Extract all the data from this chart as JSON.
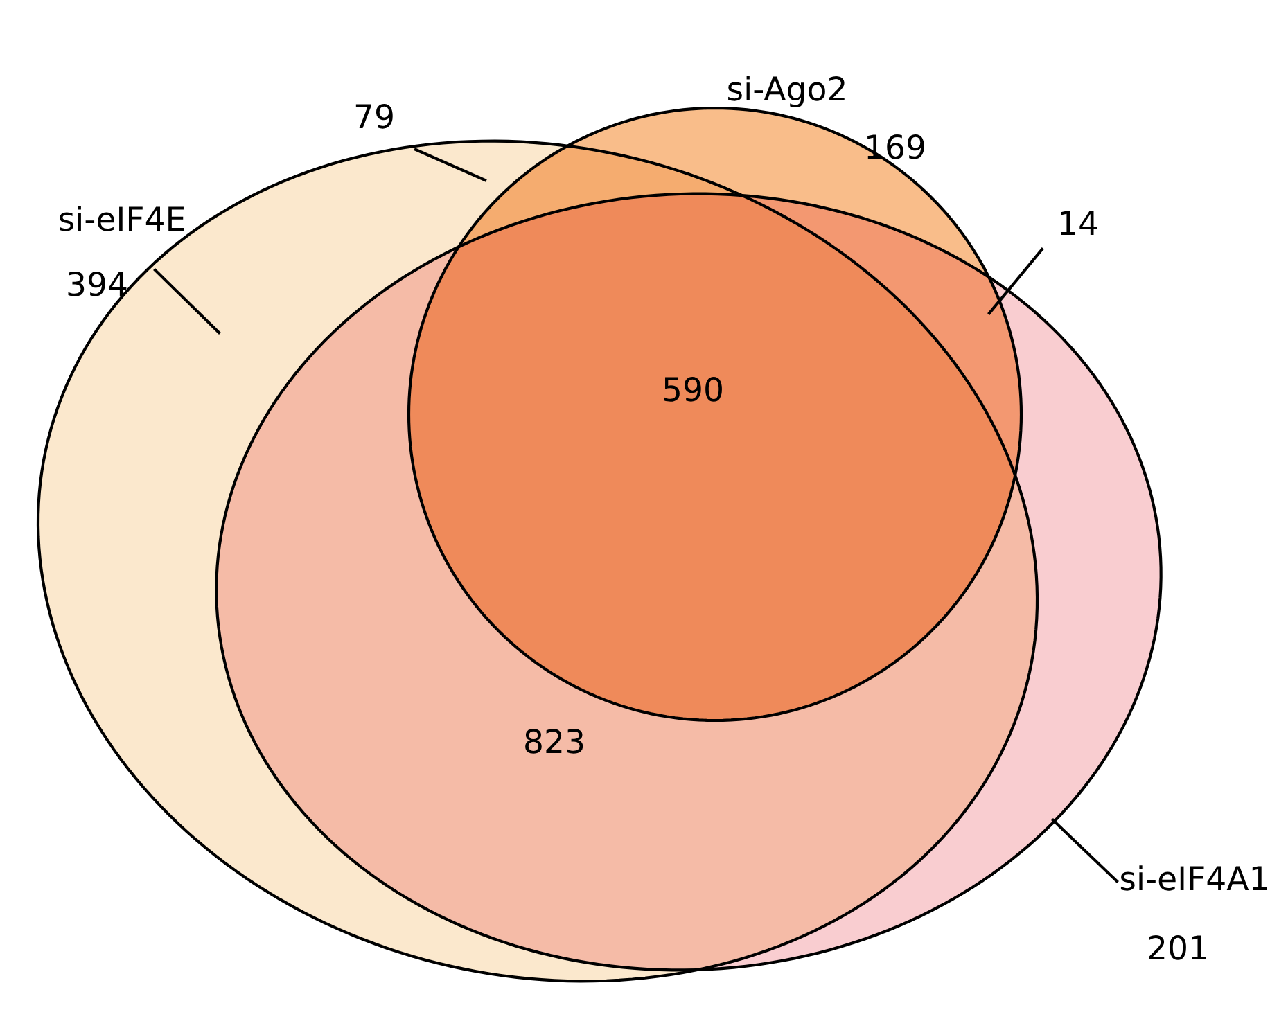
{
  "chart_data": {
    "type": "other",
    "categories": [
      "si-eIF4E",
      "si-Ago2",
      "si-eIF4A1"
    ],
    "values": [
      394,
      169,
      201
    ],
    "data_labels": true,
    "colors": [
      "#fbe8cd",
      "#f9bd8a",
      "#f9cdd0"
    ],
    "annotations": [
      "79",
      "14",
      "823",
      "590"
    ]
  }
}
